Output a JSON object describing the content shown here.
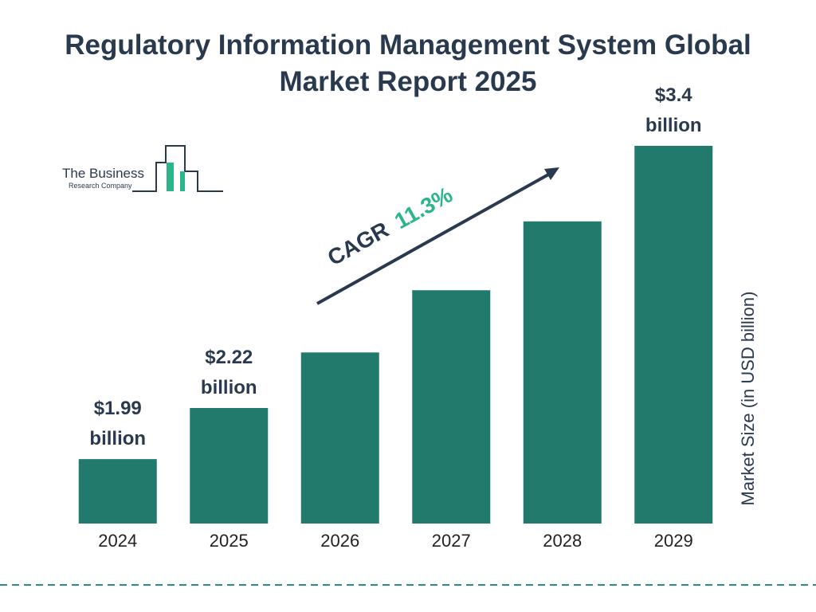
{
  "logo": {
    "line1": "The Business",
    "line2": "Research Company"
  },
  "chart_data": {
    "type": "bar",
    "title": "Regulatory Information Management System Global Market Report 2025",
    "y_axis_label": "Market Size (in USD billion)",
    "cagr_label": "CAGR",
    "cagr_value": "11.3%",
    "categories": [
      "2024",
      "2025",
      "2026",
      "2027",
      "2028",
      "2029"
    ],
    "values": [
      1.99,
      2.22,
      2.47,
      2.75,
      3.06,
      3.4
    ],
    "value_labels": [
      "$1.99 billion",
      "$2.22 billion",
      null,
      null,
      null,
      "$3.4 billion"
    ],
    "color": "#217a6b",
    "ylim": [
      1.7,
      3.4
    ]
  }
}
